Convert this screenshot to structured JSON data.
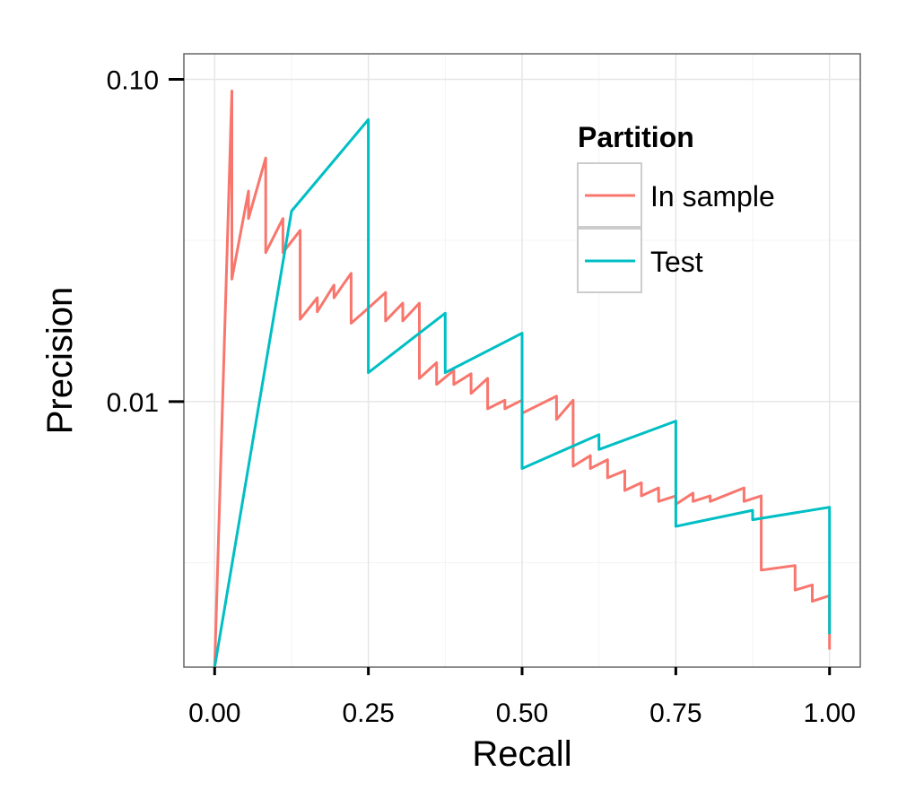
{
  "chart_data": {
    "type": "line",
    "title": "",
    "xlabel": "Recall",
    "ylabel": "Precision",
    "xlim": [
      -0.05,
      1.05
    ],
    "ylim": [
      0.0015,
      0.12
    ],
    "y_scale": "log10",
    "grid": true,
    "legend_position": "top-right",
    "x_ticks": [
      {
        "value": 0.0,
        "label": "0.00"
      },
      {
        "value": 0.25,
        "label": "0.25"
      },
      {
        "value": 0.5,
        "label": "0.50"
      },
      {
        "value": 0.75,
        "label": "0.75"
      },
      {
        "value": 1.0,
        "label": "1.00"
      }
    ],
    "y_ticks": [
      {
        "value": 0.1,
        "label": "0.10"
      },
      {
        "value": 0.01,
        "label": "0.01"
      }
    ],
    "legend": {
      "title": "Partition",
      "entries": [
        "In sample",
        "Test"
      ]
    },
    "series": [
      {
        "name": "In sample",
        "color": "#F8766D",
        "points": [
          [
            0.0,
            0.0015
          ],
          [
            0.028,
            0.092
          ],
          [
            0.028,
            0.024
          ],
          [
            0.055,
            0.045
          ],
          [
            0.055,
            0.037
          ],
          [
            0.083,
            0.057
          ],
          [
            0.083,
            0.029
          ],
          [
            0.111,
            0.037
          ],
          [
            0.111,
            0.029
          ],
          [
            0.139,
            0.034
          ],
          [
            0.139,
            0.018
          ],
          [
            0.167,
            0.021
          ],
          [
            0.167,
            0.019
          ],
          [
            0.194,
            0.023
          ],
          [
            0.194,
            0.021
          ],
          [
            0.222,
            0.025
          ],
          [
            0.222,
            0.0175
          ],
          [
            0.25,
            0.0195
          ],
          [
            0.278,
            0.0218
          ],
          [
            0.278,
            0.0178
          ],
          [
            0.306,
            0.0202
          ],
          [
            0.306,
            0.0178
          ],
          [
            0.333,
            0.0202
          ],
          [
            0.333,
            0.0118
          ],
          [
            0.361,
            0.0132
          ],
          [
            0.361,
            0.0113
          ],
          [
            0.389,
            0.0125
          ],
          [
            0.389,
            0.0113
          ],
          [
            0.417,
            0.0122
          ],
          [
            0.417,
            0.0106
          ],
          [
            0.444,
            0.0118
          ],
          [
            0.444,
            0.0095
          ],
          [
            0.472,
            0.0101
          ],
          [
            0.472,
            0.0095
          ],
          [
            0.5,
            0.0101
          ],
          [
            0.5,
            0.0092
          ],
          [
            0.556,
            0.0104
          ],
          [
            0.556,
            0.0088
          ],
          [
            0.583,
            0.0101
          ],
          [
            0.583,
            0.0063
          ],
          [
            0.611,
            0.0068
          ],
          [
            0.611,
            0.0062
          ],
          [
            0.639,
            0.0066
          ],
          [
            0.639,
            0.0058
          ],
          [
            0.667,
            0.0061
          ],
          [
            0.667,
            0.0053
          ],
          [
            0.694,
            0.0056
          ],
          [
            0.694,
            0.0051
          ],
          [
            0.722,
            0.0054
          ],
          [
            0.722,
            0.0049
          ],
          [
            0.75,
            0.0051
          ],
          [
            0.75,
            0.0048
          ],
          [
            0.778,
            0.0052
          ],
          [
            0.778,
            0.0049
          ],
          [
            0.806,
            0.0051
          ],
          [
            0.806,
            0.0049
          ],
          [
            0.861,
            0.0054
          ],
          [
            0.861,
            0.0049
          ],
          [
            0.889,
            0.0051
          ],
          [
            0.889,
            0.003
          ],
          [
            0.944,
            0.0031
          ],
          [
            0.944,
            0.0026
          ],
          [
            0.972,
            0.0027
          ],
          [
            0.972,
            0.0024
          ],
          [
            1.0,
            0.0025
          ],
          [
            1.0,
            0.0017
          ]
        ]
      },
      {
        "name": "Test",
        "color": "#00BFC4",
        "points": [
          [
            0.0,
            0.0015
          ],
          [
            0.125,
            0.039
          ],
          [
            0.25,
            0.075
          ],
          [
            0.25,
            0.0123
          ],
          [
            0.375,
            0.0188
          ],
          [
            0.375,
            0.0123
          ],
          [
            0.5,
            0.0163
          ],
          [
            0.5,
            0.0062
          ],
          [
            0.625,
            0.0079
          ],
          [
            0.625,
            0.0071
          ],
          [
            0.75,
            0.0087
          ],
          [
            0.75,
            0.0041
          ],
          [
            0.875,
            0.0046
          ],
          [
            0.875,
            0.0043
          ],
          [
            1.0,
            0.0047
          ],
          [
            1.0,
            0.0019
          ]
        ]
      }
    ]
  }
}
